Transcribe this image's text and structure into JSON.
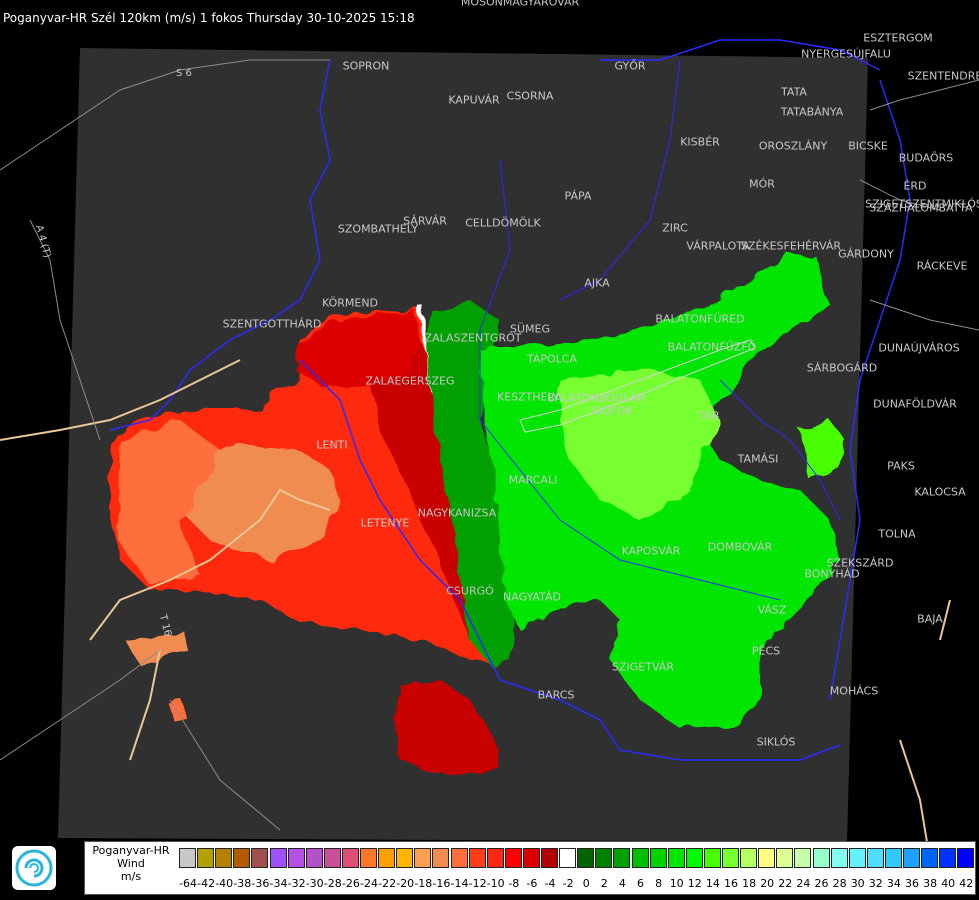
{
  "header": {
    "title": "Poganyvar-HR Szél 120km (m/s) 1 fokos Thursday 30-10-2025 15:18"
  },
  "map": {
    "road_labels": [
      "S 6",
      "A 4 (T)",
      "T 16"
    ],
    "cities": [
      "MOSONMAGYARÓVÁR",
      "SOPRON",
      "GYŐR",
      "KAPUVÁR",
      "CSORNA",
      "ESZTERGOM",
      "NYERGESÚJFALU",
      "SZENTENDRE",
      "TATA",
      "TATABÁNYA",
      "KISBÉR",
      "OROSZLÁNY",
      "BICSKE",
      "BUDAÖRS",
      "ÉRD",
      "SZIGETSZENTMIKLÓS",
      "SZÁZHALOMBATTA",
      "MÓR",
      "PÁPA",
      "ZIRC",
      "VÁRPALOTA",
      "SZÉKESFEHÉRVÁR",
      "GÁRDONY",
      "RÁCKEVE",
      "SZOMBATHELY",
      "SÁRVÁR",
      "CELLDÖMÖLK",
      "AJKA",
      "KÖRMEND",
      "SZENTGOTTHÁRD",
      "SÜMEG",
      "ZALASZENTGRÓT",
      "TAPOLCA",
      "ZALAEGERSZEG",
      "BALATONFÜRED",
      "BALATONFŰZFŐ",
      "KESZTHELY",
      "BALATONBOGLÁR",
      "SIÓFOK",
      "SÁRBOGÁRD",
      "DUNAÚJVÁROS",
      "DUNAFÖLDVÁR",
      "TAB",
      "LENTI",
      "MARCALI",
      "TAMÁSI",
      "PAKS",
      "KALOCSA",
      "LETENYE",
      "NAGYKANIZSA",
      "KAPOSVÁR",
      "DOMBÓVÁR",
      "TOLNA",
      "SZEKSZÁRD",
      "BONYHÁD",
      "CSURGÓ",
      "NAGYATÁD",
      "SZIGETVÁR",
      "PÉCS",
      "BAJA",
      "MOHÁCS",
      "BARCS",
      "SIKLÓS",
      "VÁSZ"
    ]
  },
  "legend": {
    "station": "Poganyvar-HR",
    "quantity": "Wind",
    "unit": "m/s",
    "ticks": [
      "-64",
      "-42",
      "-40",
      "-38",
      "-36",
      "-34",
      "-32",
      "-30",
      "-28",
      "-26",
      "-24",
      "-22",
      "-20",
      "-18",
      "-16",
      "-14",
      "-12",
      "-10",
      "-8",
      "-6",
      "-4",
      "-2",
      "0",
      "2",
      "4",
      "6",
      "8",
      "10",
      "12",
      "14",
      "16",
      "18",
      "20",
      "22",
      "24",
      "26",
      "28",
      "30",
      "32",
      "34",
      "36",
      "38",
      "40",
      "42"
    ],
    "colors": [
      "#c8c8c8",
      "#b4a000",
      "#b48200",
      "#b45a00",
      "#a05050",
      "#a050ff",
      "#b450e6",
      "#b450c8",
      "#c85096",
      "#dc5078",
      "#ff7828",
      "#ffa000",
      "#ffb400",
      "#ffa050",
      "#f08c50",
      "#ff6e3c",
      "#ff3c1e",
      "#ff2814",
      "#ff0000",
      "#dc0000",
      "#b40000",
      "#ffffff",
      "#006400",
      "#008200",
      "#00a000",
      "#00be00",
      "#00d200",
      "#00e600",
      "#00fa00",
      "#46ff00",
      "#78ff32",
      "#b4ff64",
      "#ffff82",
      "#dcff96",
      "#c8ffaa",
      "#96ffc8",
      "#82fff0",
      "#64f0ff",
      "#50dcff",
      "#32c8ff",
      "#1ea0ff",
      "#0064ff",
      "#0032ff",
      "#0000ff"
    ]
  }
}
